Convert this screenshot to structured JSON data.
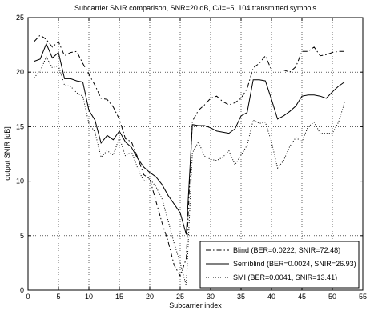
{
  "chart_data": {
    "type": "line",
    "title": "Subcarrier SNIR comparison, SNR=20 dB, C/I=−5, 104 transmitted symbols",
    "xlabel": "Subcarrier index",
    "ylabel": "output SNIR [dB]",
    "xlim": [
      0,
      55
    ],
    "ylim": [
      0,
      25
    ],
    "xticks": [
      "0",
      "5",
      "10",
      "15",
      "20",
      "25",
      "30",
      "35",
      "40",
      "45",
      "50",
      "55"
    ],
    "yticks": [
      "0",
      "5",
      "10",
      "15",
      "20",
      "25"
    ],
    "grid": true,
    "legend_position": "bottom-right",
    "x": [
      1,
      2,
      3,
      4,
      5,
      6,
      7,
      8,
      9,
      10,
      11,
      12,
      13,
      14,
      15,
      16,
      17,
      18,
      19,
      20,
      21,
      22,
      23,
      24,
      25,
      26,
      27,
      28,
      29,
      30,
      31,
      32,
      33,
      34,
      35,
      36,
      37,
      38,
      39,
      40,
      41,
      42,
      43,
      44,
      45,
      46,
      47,
      48,
      49,
      50,
      51,
      52
    ],
    "series": [
      {
        "name": "Blind (BER=0.0222, SNIR=72.48)",
        "style": "dashdot",
        "color": "#000000",
        "values": [
          22.8,
          23.4,
          23.0,
          22.3,
          22.8,
          21.5,
          21.8,
          21.9,
          20.8,
          19.8,
          18.8,
          17.6,
          17.5,
          16.8,
          15.7,
          13.9,
          13.6,
          12.2,
          10.6,
          10.2,
          8.2,
          6.2,
          4.5,
          2.3,
          1.3,
          2.9,
          15.5,
          16.5,
          17.0,
          17.6,
          17.8,
          17.3,
          17.0,
          17.2,
          17.6,
          18.5,
          20.4,
          20.8,
          21.5,
          20.2,
          20.2,
          20.2,
          20.0,
          20.5,
          21.9,
          21.9,
          22.3,
          21.5,
          21.6,
          21.8,
          21.9,
          21.9
        ]
      },
      {
        "name": "Semiblind (BER=0.0024, SNIR=26.93)",
        "style": "solid",
        "color": "#000000",
        "values": [
          21.0,
          21.2,
          22.6,
          21.3,
          21.8,
          19.4,
          19.4,
          19.2,
          19.1,
          16.5,
          15.6,
          13.5,
          14.2,
          13.8,
          14.6,
          13.6,
          13.1,
          12.1,
          11.3,
          10.8,
          10.4,
          9.7,
          8.7,
          7.9,
          7.1,
          5.1,
          15.2,
          15.1,
          15.1,
          14.9,
          14.6,
          14.5,
          14.4,
          14.8,
          16.0,
          16.3,
          19.3,
          19.3,
          19.2,
          17.5,
          15.7,
          16.0,
          16.4,
          16.9,
          17.8,
          17.9,
          17.9,
          17.8,
          17.6,
          18.2,
          18.7,
          19.1
        ]
      },
      {
        "name": "SMI (BER=0.0041, SNIR=13.41)",
        "style": "dotted",
        "color": "#000000",
        "values": [
          19.5,
          20.1,
          21.4,
          20.4,
          20.6,
          18.8,
          18.7,
          18.1,
          17.8,
          15.3,
          14.5,
          12.2,
          12.8,
          12.4,
          14.0,
          12.3,
          12.7,
          11.2,
          10.0,
          10.2,
          9.5,
          8.4,
          6.4,
          4.3,
          2.5,
          0.4,
          12.6,
          13.6,
          12.3,
          12.0,
          11.9,
          12.2,
          12.8,
          11.5,
          12.4,
          13.3,
          15.6,
          15.3,
          15.4,
          13.6,
          11.2,
          11.9,
          13.2,
          14.0,
          13.6,
          15.0,
          15.4,
          14.4,
          14.4,
          14.4,
          15.4,
          17.2
        ]
      }
    ]
  }
}
